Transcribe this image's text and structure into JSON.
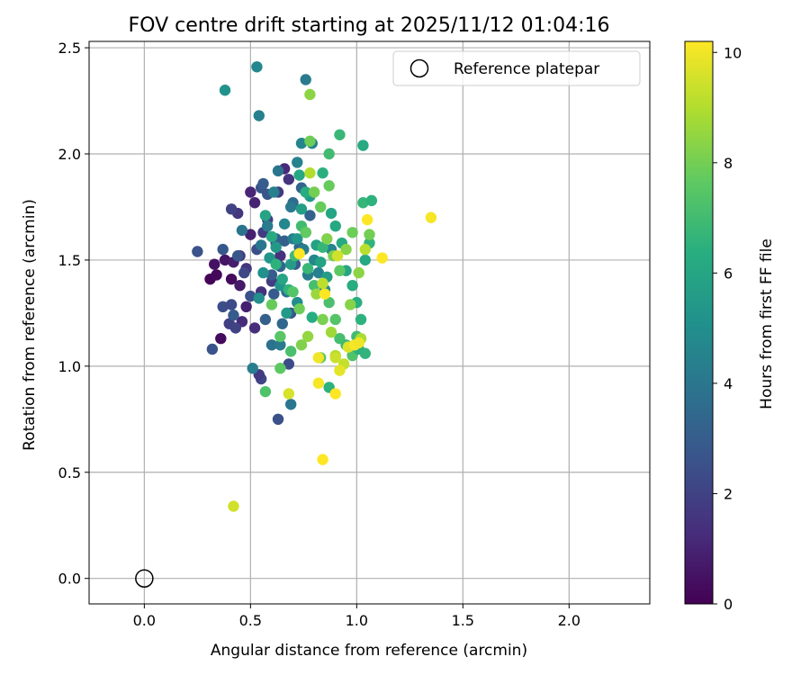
{
  "chart_data": {
    "type": "scatter",
    "title": "FOV centre drift starting at 2025/11/12 01:04:16",
    "xlabel": "Angular distance from reference (arcmin)",
    "ylabel": "Rotation from reference (arcmin)",
    "xlim": [
      -0.26,
      2.38
    ],
    "ylim": [
      -0.12,
      2.53
    ],
    "xticks": [
      0.0,
      0.5,
      1.0,
      1.5,
      2.0
    ],
    "xtick_labels": [
      "0.0",
      "0.5",
      "1.0",
      "1.5",
      "2.0"
    ],
    "yticks": [
      0.0,
      0.5,
      1.0,
      1.5,
      2.0,
      2.5
    ],
    "ytick_labels": [
      "0.0",
      "0.5",
      "1.0",
      "1.5",
      "2.0",
      "2.5"
    ],
    "grid": true,
    "legend": {
      "placement": "top-right",
      "entries": [
        "Reference platepar"
      ]
    },
    "reference_point": {
      "x": 0.0,
      "y": 0.0,
      "label": "Reference platepar"
    },
    "colorbar": {
      "label": "Hours from first FF file",
      "range": [
        0,
        10.2
      ],
      "ticks": [
        0,
        2,
        4,
        6,
        8,
        10
      ],
      "tick_labels": [
        "0",
        "2",
        "4",
        "6",
        "8",
        "10"
      ],
      "colormap": "viridis"
    },
    "points": [
      [
        0.31,
        1.41,
        0.1
      ],
      [
        0.34,
        1.43,
        0.2
      ],
      [
        0.36,
        1.13,
        0.3
      ],
      [
        0.41,
        1.41,
        0.3
      ],
      [
        0.33,
        1.48,
        0.5
      ],
      [
        0.38,
        1.5,
        0.6
      ],
      [
        0.42,
        1.49,
        0.8
      ],
      [
        0.45,
        1.38,
        0.7
      ],
      [
        0.48,
        1.28,
        0.9
      ],
      [
        0.5,
        1.62,
        0.9
      ],
      [
        0.52,
        1.77,
        1.0
      ],
      [
        0.5,
        1.82,
        1.1
      ],
      [
        0.46,
        1.21,
        1.2
      ],
      [
        0.52,
        1.18,
        1.3
      ],
      [
        0.55,
        1.35,
        1.4
      ],
      [
        0.45,
        1.52,
        1.5
      ],
      [
        0.48,
        1.46,
        1.6
      ],
      [
        0.44,
        1.72,
        1.6
      ],
      [
        0.56,
        1.63,
        1.8
      ],
      [
        0.6,
        1.4,
        1.8
      ],
      [
        0.4,
        1.2,
        1.9
      ],
      [
        0.43,
        1.18,
        2.0
      ],
      [
        0.41,
        1.74,
        2.0
      ],
      [
        0.58,
        1.69,
        2.0
      ],
      [
        0.66,
        1.93,
        1.2
      ],
      [
        0.68,
        1.88,
        1.5
      ],
      [
        0.63,
        1.82,
        1.7
      ],
      [
        0.62,
        1.58,
        1.9
      ],
      [
        0.64,
        1.52,
        1.4
      ],
      [
        0.55,
        0.94,
        2.1
      ],
      [
        0.54,
        0.96,
        1.7
      ],
      [
        0.68,
        1.01,
        2.3
      ],
      [
        0.63,
        0.75,
        2.5
      ],
      [
        0.37,
        1.28,
        2.4
      ],
      [
        0.25,
        1.54,
        2.6
      ],
      [
        0.32,
        1.08,
        2.6
      ],
      [
        0.37,
        1.55,
        2.8
      ],
      [
        0.41,
        1.29,
        2.3
      ],
      [
        0.44,
        1.52,
        2.7
      ],
      [
        0.47,
        1.44,
        2.2
      ],
      [
        0.42,
        1.24,
        2.9
      ],
      [
        0.5,
        1.33,
        2.5
      ],
      [
        0.53,
        1.55,
        2.4
      ],
      [
        0.55,
        1.84,
        2.6
      ],
      [
        0.56,
        1.86,
        3.0
      ],
      [
        0.58,
        1.81,
        2.7
      ],
      [
        0.57,
        1.22,
        3.1
      ],
      [
        0.6,
        1.43,
        3.0
      ],
      [
        0.62,
        1.6,
        3.2
      ],
      [
        0.64,
        1.47,
        3.3
      ],
      [
        0.66,
        1.59,
        3.1
      ],
      [
        0.61,
        1.34,
        2.9
      ],
      [
        0.69,
        1.25,
        2.7
      ],
      [
        0.71,
        1.48,
        2.8
      ],
      [
        0.73,
        1.56,
        3.4
      ],
      [
        0.7,
        1.77,
        3.6
      ],
      [
        0.74,
        1.84,
        3.3
      ],
      [
        0.76,
        1.63,
        3.5
      ],
      [
        0.78,
        1.71,
        3.2
      ],
      [
        0.65,
        1.2,
        3.4
      ],
      [
        0.67,
        1.35,
        3.7
      ],
      [
        0.69,
        0.82,
        4.0
      ],
      [
        0.6,
        1.1,
        3.8
      ],
      [
        0.64,
        1.1,
        4.1
      ],
      [
        0.51,
        0.99,
        4.3
      ],
      [
        0.46,
        1.64,
        3.9
      ],
      [
        0.55,
        1.57,
        4.0
      ],
      [
        0.58,
        1.66,
        4.2
      ],
      [
        0.61,
        1.82,
        4.4
      ],
      [
        0.63,
        1.92,
        3.9
      ],
      [
        0.69,
        1.75,
        4.1
      ],
      [
        0.72,
        1.96,
        4.5
      ],
      [
        0.74,
        2.05,
        4.6
      ],
      [
        0.75,
        1.55,
        4.3
      ],
      [
        0.77,
        1.43,
        4.2
      ],
      [
        0.8,
        1.5,
        4.7
      ],
      [
        0.82,
        1.44,
        4.4
      ],
      [
        0.85,
        1.36,
        4.8
      ],
      [
        0.88,
        1.55,
        4.6
      ],
      [
        0.72,
        1.3,
        4.9
      ],
      [
        0.7,
        1.6,
        4.3
      ],
      [
        0.66,
        1.67,
        4.7
      ],
      [
        0.79,
        2.05,
        4.5
      ],
      [
        0.54,
        2.18,
        4.4
      ],
      [
        0.53,
        2.41,
        4.7
      ],
      [
        0.76,
        2.35,
        4.2
      ],
      [
        0.38,
        2.3,
        5.2
      ],
      [
        0.54,
        1.32,
        5.0
      ],
      [
        0.56,
        1.44,
        5.1
      ],
      [
        0.59,
        1.51,
        5.3
      ],
      [
        0.62,
        1.56,
        5.4
      ],
      [
        0.64,
        1.38,
        5.2
      ],
      [
        0.67,
        1.25,
        5.5
      ],
      [
        0.69,
        1.48,
        5.6
      ],
      [
        0.72,
        1.6,
        5.3
      ],
      [
        0.74,
        1.74,
        5.7
      ],
      [
        0.78,
        1.8,
        5.5
      ],
      [
        0.81,
        1.57,
        5.8
      ],
      [
        0.83,
        1.49,
        5.9
      ],
      [
        0.86,
        1.42,
        5.6
      ],
      [
        0.88,
        1.72,
        6.0
      ],
      [
        0.9,
        1.66,
        6.1
      ],
      [
        0.93,
        1.58,
        6.2
      ],
      [
        0.95,
        1.45,
        6.0
      ],
      [
        0.98,
        1.38,
        6.3
      ],
      [
        1.0,
        1.3,
        6.4
      ],
      [
        1.02,
        1.22,
        6.5
      ],
      [
        1.04,
        1.5,
        6.1
      ],
      [
        1.06,
        1.58,
        6.6
      ],
      [
        1.03,
        1.77,
        6.7
      ],
      [
        1.07,
        1.78,
        6.5
      ],
      [
        1.03,
        2.04,
        6.2
      ],
      [
        0.92,
        2.09,
        6.8
      ],
      [
        0.87,
        2.0,
        7.0
      ],
      [
        0.84,
        1.91,
        6.4
      ],
      [
        0.76,
        1.82,
        6.3
      ],
      [
        0.73,
        1.9,
        6.1
      ],
      [
        0.57,
        1.71,
        5.9
      ],
      [
        0.6,
        1.61,
        6.2
      ],
      [
        0.62,
        1.48,
        6.5
      ],
      [
        0.65,
        1.41,
        6.0
      ],
      [
        0.68,
        1.36,
        6.6
      ],
      [
        0.71,
        1.52,
        6.9
      ],
      [
        0.74,
        1.66,
        7.0
      ],
      [
        0.77,
        1.46,
        6.8
      ],
      [
        0.8,
        1.38,
        7.1
      ],
      [
        0.84,
        1.56,
        6.7
      ],
      [
        0.87,
        1.3,
        7.2
      ],
      [
        0.9,
        1.22,
        7.4
      ],
      [
        0.92,
        1.13,
        7.1
      ],
      [
        0.95,
        1.1,
        6.9
      ],
      [
        0.98,
        1.05,
        7.3
      ],
      [
        1.0,
        1.14,
        7.0
      ],
      [
        1.01,
        1.08,
        6.4
      ],
      [
        1.04,
        1.06,
        6.6
      ],
      [
        0.87,
        0.9,
        6.5
      ],
      [
        0.83,
        1.04,
        7.5
      ],
      [
        0.79,
        1.23,
        6.3
      ],
      [
        0.69,
        1.07,
        7.2
      ],
      [
        0.64,
        0.99,
        7.6
      ],
      [
        0.57,
        0.88,
        7.3
      ],
      [
        0.6,
        1.29,
        7.8
      ],
      [
        0.64,
        1.14,
        7.5
      ],
      [
        0.7,
        1.35,
        7.4
      ],
      [
        0.73,
        1.27,
        7.9
      ],
      [
        0.76,
        1.63,
        7.7
      ],
      [
        0.8,
        1.82,
        8.0
      ],
      [
        0.83,
        1.75,
        7.8
      ],
      [
        0.86,
        1.6,
        8.2
      ],
      [
        0.89,
        1.52,
        8.1
      ],
      [
        0.92,
        1.45,
        7.6
      ],
      [
        0.95,
        1.55,
        8.3
      ],
      [
        0.98,
        1.63,
        7.9
      ],
      [
        1.01,
        1.44,
        8.4
      ],
      [
        1.06,
        1.62,
        8.0
      ],
      [
        0.87,
        1.85,
        7.8
      ],
      [
        0.78,
        2.06,
        7.9
      ],
      [
        0.78,
        2.28,
        8.4
      ],
      [
        0.77,
        1.14,
        8.5
      ],
      [
        0.74,
        1.1,
        8.2
      ],
      [
        0.81,
        1.34,
        8.6
      ],
      [
        0.84,
        1.22,
        8.1
      ],
      [
        0.88,
        1.16,
        8.7
      ],
      [
        0.97,
        1.29,
        8.3
      ],
      [
        1.02,
        1.13,
        8.9
      ],
      [
        0.9,
        1.05,
        9.0
      ],
      [
        0.94,
        1.01,
        9.3
      ],
      [
        0.68,
        0.87,
        9.6
      ],
      [
        0.42,
        0.34,
        9.5
      ],
      [
        0.84,
        0.56,
        10.2
      ],
      [
        0.82,
        0.92,
        10.1
      ],
      [
        0.82,
        1.04,
        10.0
      ],
      [
        0.9,
        0.87,
        10.2
      ],
      [
        0.92,
        0.98,
        9.8
      ],
      [
        0.9,
        1.04,
        9.4
      ],
      [
        0.96,
        1.09,
        9.7
      ],
      [
        0.99,
        1.1,
        10.1
      ],
      [
        1.01,
        1.11,
        10.0
      ],
      [
        0.85,
        1.34,
        10.2
      ],
      [
        0.84,
        1.39,
        9.2
      ],
      [
        0.73,
        1.53,
        10.2
      ],
      [
        0.91,
        1.52,
        9.5
      ],
      [
        1.05,
        1.69,
        10.2
      ],
      [
        1.12,
        1.51,
        10.2
      ],
      [
        1.35,
        1.7,
        10.1
      ],
      [
        1.04,
        1.55,
        9.1
      ],
      [
        0.78,
        1.91,
        9.0
      ]
    ]
  }
}
